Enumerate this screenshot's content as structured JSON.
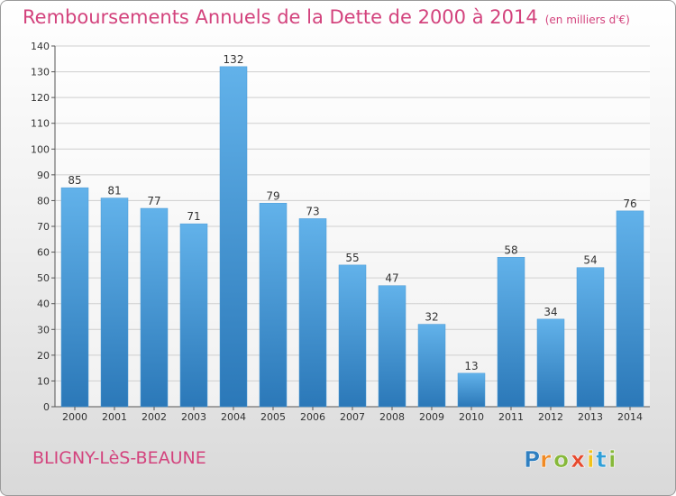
{
  "title": "Remboursements Annuels de la Dette de 2000 à 2014",
  "subtitle": "(en milliers d'€)",
  "commune": "BLIGNY-LèS-BEAUNE",
  "logo_text": "Proxiti",
  "colors": {
    "title": "#d3437d",
    "bar_top": "#62b2ea",
    "bar_bottom": "#2b78b8",
    "grid": "#cfcfcf"
  },
  "chart_data": {
    "type": "bar",
    "title": "Remboursements Annuels de la Dette de 2000 à 2014",
    "subtitle": "(en milliers d'€)",
    "categories": [
      "2000",
      "2001",
      "2002",
      "2003",
      "2004",
      "2005",
      "2006",
      "2007",
      "2008",
      "2009",
      "2010",
      "2011",
      "2012",
      "2013",
      "2014"
    ],
    "values": [
      85,
      81,
      77,
      71,
      132,
      79,
      73,
      55,
      47,
      32,
      13,
      58,
      34,
      54,
      76
    ],
    "ylim": [
      0,
      140
    ],
    "yticks": [
      0,
      10,
      20,
      30,
      40,
      50,
      60,
      70,
      80,
      90,
      100,
      110,
      120,
      130,
      140
    ],
    "grid": true,
    "data_labels": true
  }
}
